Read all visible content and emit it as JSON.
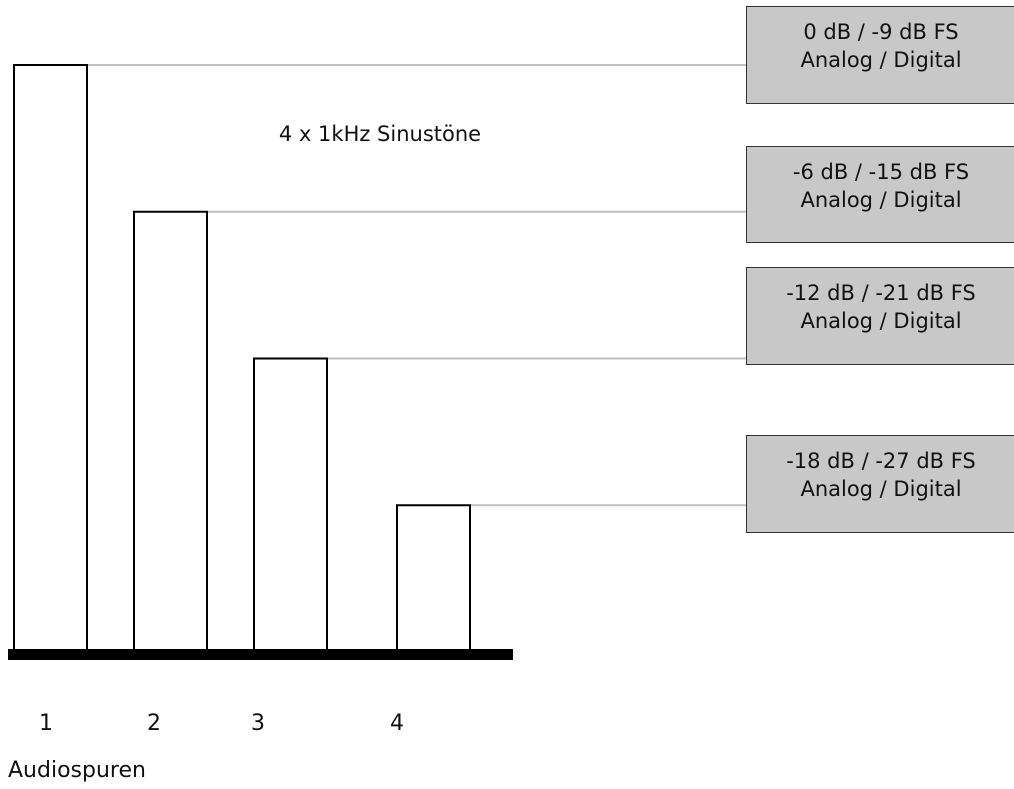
{
  "chart_data": {
    "type": "bar",
    "title": "4 x 1kHz Sinustöne",
    "xlabel": "Audiospuren",
    "ylabel": "",
    "categories": [
      "1",
      "2",
      "3",
      "4"
    ],
    "values": [
      0,
      -6,
      -12,
      -18
    ],
    "units": "dB",
    "ylim": [
      -24,
      0
    ],
    "grid": false,
    "legend": "none",
    "bar_color": "#ffffff",
    "bar_edge_color": "#000000",
    "baseline_color": "#000000",
    "leader_line_color": "#c0c0c0",
    "annotation_fill": "#c8c8c8",
    "annotations": [
      {
        "line1": "0 dB / -9 dB FS",
        "line2": "Analog / Digital",
        "bar": "1"
      },
      {
        "line1": "-6 dB / -15 dB FS",
        "line2": "Analog / Digital",
        "bar": "2"
      },
      {
        "line1": "-12 dB / -21 dB FS",
        "line2": "Analog / Digital",
        "bar": "3"
      },
      {
        "line1": "-18 dB / -27 dB FS",
        "line2": "Analog / Digital",
        "bar": "4"
      }
    ]
  }
}
